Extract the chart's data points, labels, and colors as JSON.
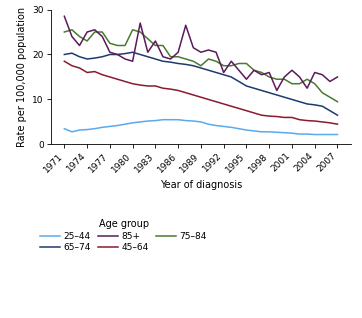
{
  "years": [
    1971,
    1972,
    1973,
    1974,
    1975,
    1976,
    1977,
    1978,
    1979,
    1980,
    1981,
    1982,
    1983,
    1984,
    1985,
    1986,
    1987,
    1988,
    1989,
    1990,
    1991,
    1992,
    1993,
    1994,
    1995,
    1996,
    1997,
    1998,
    1999,
    2000,
    2001,
    2002,
    2003,
    2004,
    2005,
    2006,
    2007
  ],
  "age_25_44": [
    3.5,
    2.8,
    3.2,
    3.3,
    3.5,
    3.8,
    4.0,
    4.2,
    4.5,
    4.8,
    5.0,
    5.2,
    5.3,
    5.5,
    5.5,
    5.5,
    5.3,
    5.2,
    5.0,
    4.5,
    4.2,
    4.0,
    3.8,
    3.5,
    3.2,
    3.0,
    2.8,
    2.8,
    2.7,
    2.6,
    2.5,
    2.3,
    2.3,
    2.2,
    2.2,
    2.2,
    2.2
  ],
  "age_45_64": [
    18.5,
    17.5,
    17.0,
    16.0,
    16.2,
    15.5,
    15.0,
    14.5,
    14.0,
    13.5,
    13.2,
    13.0,
    13.0,
    12.5,
    12.3,
    12.0,
    11.5,
    11.0,
    10.5,
    10.0,
    9.5,
    9.0,
    8.5,
    8.0,
    7.5,
    7.0,
    6.5,
    6.3,
    6.2,
    6.0,
    6.0,
    5.5,
    5.3,
    5.2,
    5.0,
    4.8,
    4.5
  ],
  "age_65_74": [
    20.0,
    20.3,
    19.5,
    19.0,
    19.2,
    19.5,
    20.0,
    20.0,
    20.2,
    20.5,
    20.0,
    19.5,
    19.0,
    18.5,
    18.3,
    18.0,
    17.8,
    17.5,
    17.0,
    16.5,
    16.0,
    15.5,
    15.0,
    14.0,
    13.0,
    12.5,
    12.0,
    11.5,
    11.0,
    10.5,
    10.0,
    9.5,
    9.0,
    8.8,
    8.5,
    7.5,
    6.5
  ],
  "age_75_84": [
    25.0,
    25.5,
    24.0,
    23.0,
    25.0,
    25.0,
    22.5,
    22.0,
    22.0,
    25.5,
    25.0,
    23.5,
    22.0,
    22.0,
    19.5,
    19.5,
    19.0,
    18.5,
    17.5,
    19.0,
    18.5,
    17.5,
    17.5,
    18.0,
    18.0,
    16.5,
    16.0,
    15.0,
    14.5,
    14.5,
    13.5,
    13.5,
    14.5,
    13.5,
    11.5,
    10.5,
    9.5
  ],
  "age_85plus": [
    28.5,
    24.0,
    22.0,
    25.0,
    25.5,
    24.0,
    20.5,
    20.0,
    19.0,
    18.5,
    27.0,
    20.5,
    23.0,
    19.5,
    19.0,
    20.5,
    26.5,
    21.5,
    20.5,
    21.0,
    20.5,
    16.0,
    18.5,
    16.5,
    14.5,
    16.5,
    15.5,
    16.0,
    12.0,
    15.0,
    16.5,
    15.0,
    12.5,
    16.0,
    15.5,
    14.0,
    15.0
  ],
  "color_25_44": "#5aaaed",
  "color_45_64": "#8b1a2e",
  "color_65_74": "#1e3a6e",
  "color_75_84": "#4a7a30",
  "color_85plus": "#5c1a5c",
  "ylabel": "Rate per 100,000 population",
  "xlabel": "Year of diagnosis",
  "ylim": [
    0,
    30
  ],
  "yticks": [
    0,
    10,
    20,
    30
  ],
  "xticks": [
    1971,
    1974,
    1977,
    1980,
    1983,
    1986,
    1989,
    1992,
    1995,
    1998,
    2001,
    2004,
    2007
  ],
  "legend_title": "Age group",
  "legend_col1": [
    "25–44",
    "45–64"
  ],
  "legend_col2": [
    "65–74",
    "75–84"
  ],
  "legend_col3": [
    "85+",
    ""
  ],
  "title_fontsize": 7.0,
  "label_fontsize": 7.0,
  "tick_fontsize": 6.5
}
